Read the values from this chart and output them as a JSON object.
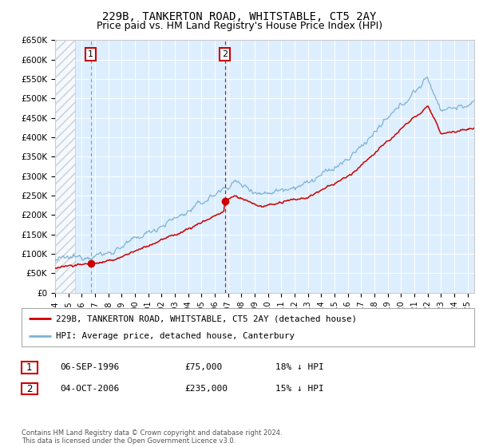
{
  "title": "229B, TANKERTON ROAD, WHITSTABLE, CT5 2AY",
  "subtitle": "Price paid vs. HM Land Registry's House Price Index (HPI)",
  "ylim": [
    0,
    650000
  ],
  "yticks": [
    0,
    50000,
    100000,
    150000,
    200000,
    250000,
    300000,
    350000,
    400000,
    450000,
    500000,
    550000,
    600000,
    650000
  ],
  "ytick_labels": [
    "£0",
    "£50K",
    "£100K",
    "£150K",
    "£200K",
    "£250K",
    "£300K",
    "£350K",
    "£400K",
    "£450K",
    "£500K",
    "£550K",
    "£600K",
    "£650K"
  ],
  "xlim_start": 1994.0,
  "xlim_end": 2025.5,
  "bg_color": "#ddeeff",
  "hatch_end_year": 1995.5,
  "line_color_red": "#cc0000",
  "line_color_blue": "#7fb3d3",
  "purchase1_x": 1996.68,
  "purchase1_y": 75000,
  "purchase2_x": 2006.75,
  "purchase2_y": 235000,
  "legend_label_red": "229B, TANKERTON ROAD, WHITSTABLE, CT5 2AY (detached house)",
  "legend_label_blue": "HPI: Average price, detached house, Canterbury",
  "table_row1": [
    "1",
    "06-SEP-1996",
    "£75,000",
    "18% ↓ HPI"
  ],
  "table_row2": [
    "2",
    "04-OCT-2006",
    "£235,000",
    "15% ↓ HPI"
  ],
  "footer": "Contains HM Land Registry data © Crown copyright and database right 2024.\nThis data is licensed under the Open Government Licence v3.0.",
  "grid_color": "#ffffff",
  "title_fontsize": 10,
  "subtitle_fontsize": 9
}
